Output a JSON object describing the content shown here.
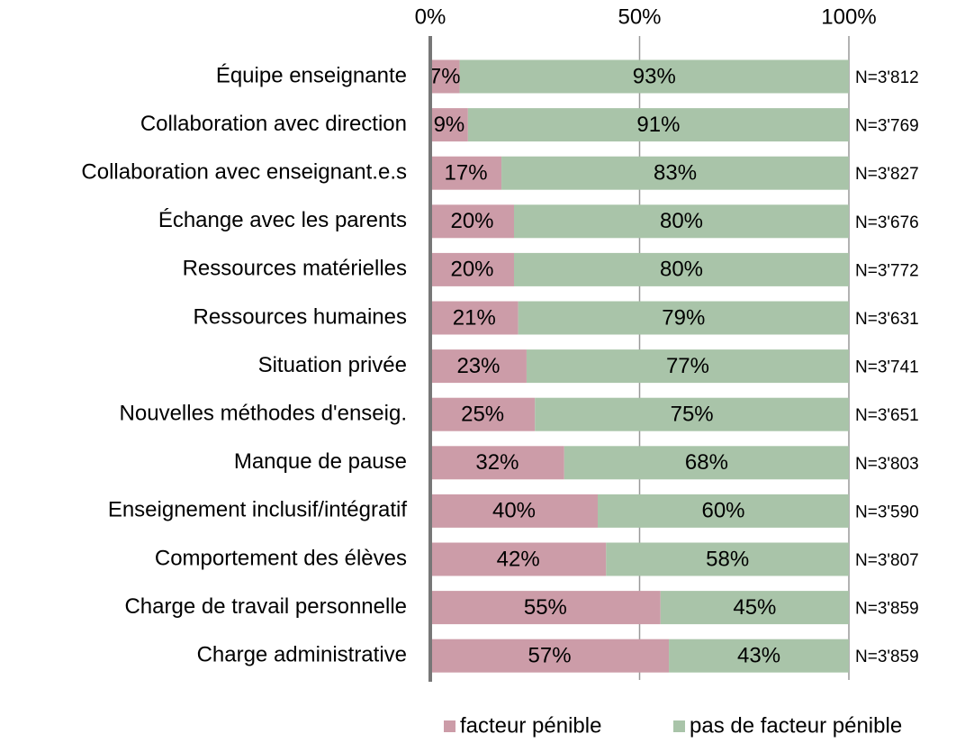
{
  "chart_data": {
    "type": "stacked_bar_horizontal",
    "categories": [
      "Équipe enseignante",
      "Collaboration avec direction",
      "Collaboration avec enseignant.e.s",
      "Échange avec les parents",
      "Ressources matérielles",
      "Ressources humaines",
      "Situation privée",
      "Nouvelles méthodes d'enseig.",
      "Manque de pause",
      "Enseignement inclusif/intégratif",
      "Comportement des élèves",
      "Charge de travail personnelle",
      "Charge administrative"
    ],
    "series": [
      {
        "name": "facteur pénible",
        "color": "#cc9ca8",
        "values": [
          7,
          9,
          17,
          20,
          20,
          21,
          23,
          25,
          32,
          40,
          42,
          55,
          57
        ],
        "value_labels": [
          "7%",
          "9%",
          "17%",
          "20%",
          "20%",
          "21%",
          "23%",
          "25%",
          "32%",
          "40%",
          "42%",
          "55%",
          "57%"
        ]
      },
      {
        "name": "pas de facteur pénible",
        "color": "#a9c4a9",
        "values": [
          93,
          91,
          83,
          80,
          80,
          79,
          77,
          75,
          68,
          60,
          58,
          45,
          43
        ],
        "value_labels": [
          "93%",
          "91%",
          "83%",
          "80%",
          "80%",
          "79%",
          "77%",
          "75%",
          "68%",
          "60%",
          "58%",
          "45%",
          "43%"
        ]
      }
    ],
    "n_labels": [
      "N=3'812",
      "N=3'769",
      "N=3'827",
      "N=3'676",
      "N=3'772",
      "N=3'631",
      "N=3'741",
      "N=3'651",
      "N=3'803",
      "N=3'590",
      "N=3'807",
      "N=3'859",
      "N=3'859"
    ],
    "xlim": [
      0,
      100
    ],
    "xticks": [
      {
        "value": 0,
        "label": "0%"
      },
      {
        "value": 50,
        "label": "50%"
      },
      {
        "value": 100,
        "label": "100%"
      }
    ],
    "grid": true,
    "legend": "bottom"
  }
}
